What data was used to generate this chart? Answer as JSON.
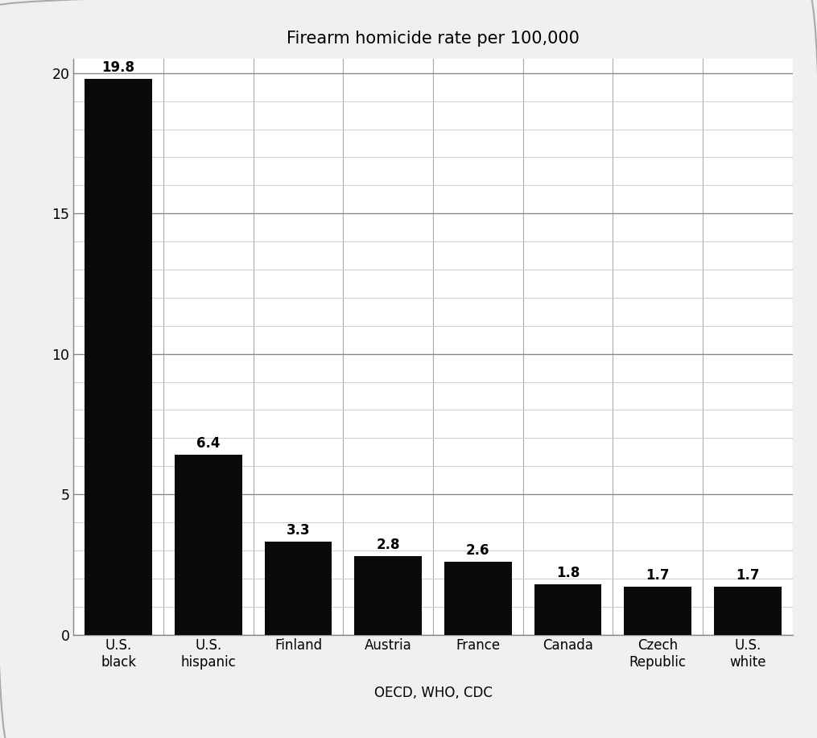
{
  "title": "Firearm homicide rate per 100,000",
  "categories": [
    "U.S.\nblack",
    "U.S.\nhispanic",
    "Finland",
    "Austria",
    "France",
    "Canada",
    "Czech\nRepublic",
    "U.S.\nwhite"
  ],
  "values": [
    19.8,
    6.4,
    3.3,
    2.8,
    2.6,
    1.8,
    1.7,
    1.7
  ],
  "bar_color": "#0a0a0a",
  "xlabel": "OECD, WHO, CDC",
  "ylim": [
    0,
    20.5
  ],
  "yticks": [
    0,
    5,
    10,
    15,
    20
  ],
  "minor_yticks_step": 1,
  "title_fontsize": 15,
  "label_fontsize": 12,
  "tick_fontsize": 12.5,
  "value_fontsize": 12,
  "xlabel_fontsize": 12,
  "background_color": "#f0f0f0",
  "plot_bg_color": "#ffffff",
  "major_grid_color": "#888888",
  "minor_grid_color": "#cccccc",
  "vgrid_color": "#aaaaaa",
  "border_color": "#aaaaaa"
}
